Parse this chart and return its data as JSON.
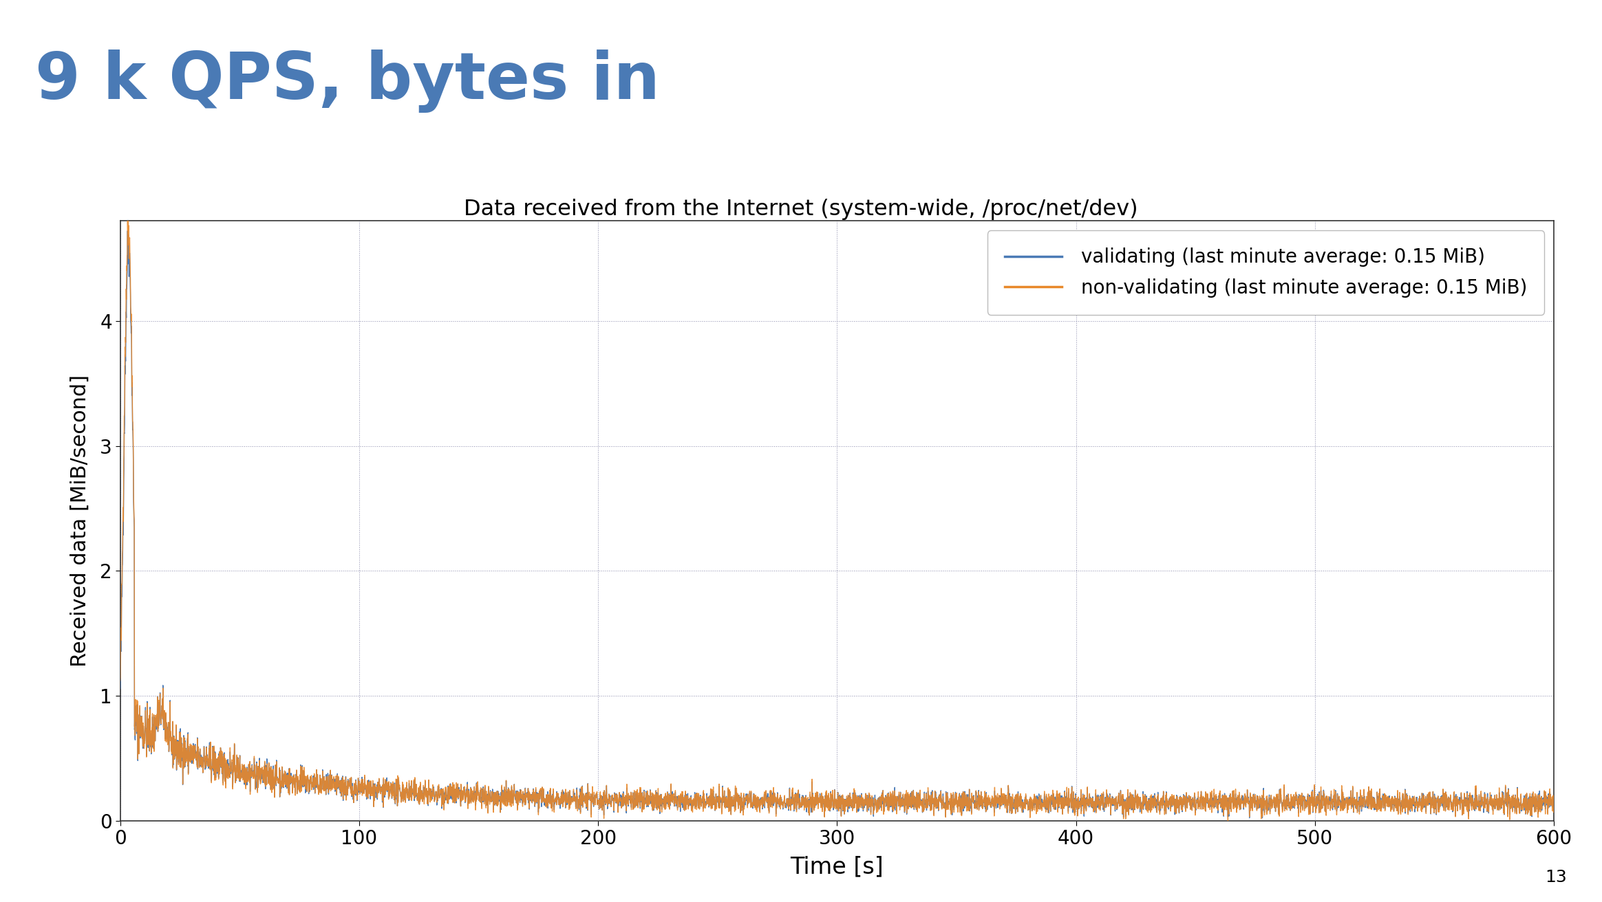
{
  "title": "9 k QPS, bytes in",
  "title_color": "#4a7ab5",
  "subtitle": "Data received from the Internet (system-wide, /proc/net/dev)",
  "xlabel": "Time [s]",
  "ylabel": "Received data [MiB/second]",
  "xlim": [
    0,
    600
  ],
  "ylim": [
    0,
    4.8
  ],
  "yticks": [
    0,
    1,
    2,
    3,
    4
  ],
  "xticks": [
    0,
    100,
    200,
    300,
    400,
    500,
    600
  ],
  "legend_labels": [
    "validating (last minute average: 0.15 MiB)",
    "non-validating (last minute average: 0.15 MiB)"
  ],
  "line_colors": [
    "#4a7ab5",
    "#e8882a"
  ],
  "background_color": "#ffffff",
  "grid_color": "#aaaacc",
  "slide_number": "13",
  "header_bar_color": "#4a7ab5",
  "header_bar_height": 0.018
}
